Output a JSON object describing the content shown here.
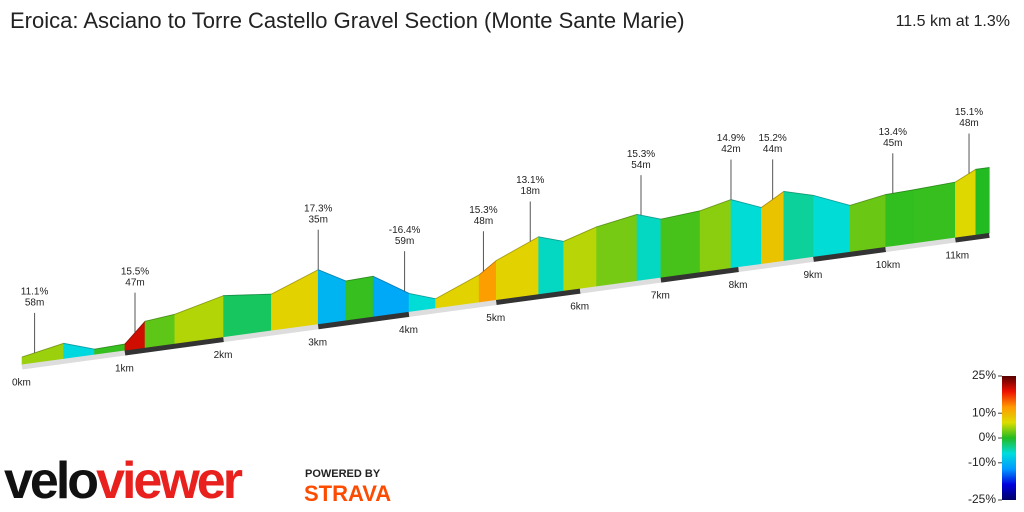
{
  "chart_data": {
    "type": "profile",
    "title": "Eroica: Asciano to Torre Castello Gravel Section (Monte Sante Marie)",
    "subtitle": "11.5 km at 1.3%",
    "x": [
      0,
      0.4,
      0.7,
      1.0,
      1.2,
      1.5,
      2.0,
      2.5,
      3.0,
      3.3,
      3.6,
      4.0,
      4.3,
      4.8,
      5.0,
      5.5,
      5.8,
      6.2,
      6.7,
      7.0,
      7.5,
      7.9,
      8.3,
      8.6,
      9.0,
      9.5,
      10.0,
      10.4,
      11.0,
      11.3,
      11.5
    ],
    "values": [
      216,
      232,
      212,
      214,
      254,
      260,
      284,
      274,
      310,
      280,
      282,
      238,
      220,
      256,
      280,
      316,
      300,
      320,
      334,
      318,
      324,
      338,
      314,
      340,
      324,
      294,
      306,
      308,
      312,
      332,
      332
    ],
    "xticks": [
      {
        "value": 0,
        "label": "0km"
      },
      {
        "value": 1,
        "label": "1km"
      },
      {
        "value": 2,
        "label": "2km"
      },
      {
        "value": 3,
        "label": "3km"
      },
      {
        "value": 4,
        "label": "4km"
      },
      {
        "value": 5,
        "label": "5km"
      },
      {
        "value": 6,
        "label": "6km"
      },
      {
        "value": 7,
        "label": "7km"
      },
      {
        "value": 8,
        "label": "8km"
      },
      {
        "value": 9,
        "label": "9km"
      },
      {
        "value": 10,
        "label": "10km"
      },
      {
        "value": 11,
        "label": "11km"
      }
    ],
    "annotations": [
      {
        "grade": "11.1%",
        "length": "58m",
        "x": 0.12
      },
      {
        "grade": "15.5%",
        "length": "47m",
        "x": 1.1
      },
      {
        "grade": "17.3%",
        "length": "35m",
        "x": 3.0
      },
      {
        "grade": "-16.4%",
        "length": "59m",
        "x": 3.95
      },
      {
        "grade": "15.3%",
        "length": "48m",
        "x": 4.85
      },
      {
        "grade": "13.1%",
        "length": "18m",
        "x": 5.4
      },
      {
        "grade": "15.3%",
        "length": "54m",
        "x": 6.75
      },
      {
        "grade": "14.9%",
        "length": "42m",
        "x": 7.9
      },
      {
        "grade": "15.2%",
        "length": "44m",
        "x": 8.45
      },
      {
        "grade": "13.4%",
        "length": "45m",
        "x": 10.1
      },
      {
        "grade": "15.1%",
        "length": "48m",
        "x": 11.2
      }
    ],
    "colorbar": {
      "lim": [
        -25,
        25
      ],
      "ticks": [
        {
          "value": 25,
          "label": "25%"
        },
        {
          "value": 10,
          "label": "10%"
        },
        {
          "value": 0,
          "label": "0%"
        },
        {
          "value": -10,
          "label": "-10%"
        },
        {
          "value": -25,
          "label": "-25%"
        }
      ],
      "colors": [
        "#000066",
        "#0000dd",
        "#0099ff",
        "#00dddd",
        "#22bb22",
        "#dddd00",
        "#ff9900",
        "#ee1100",
        "#550000"
      ]
    }
  },
  "brand": {
    "logo_a": "velo",
    "logo_b": "viewer",
    "powered": "POWERED BY",
    "strava": "STRAVA"
  }
}
